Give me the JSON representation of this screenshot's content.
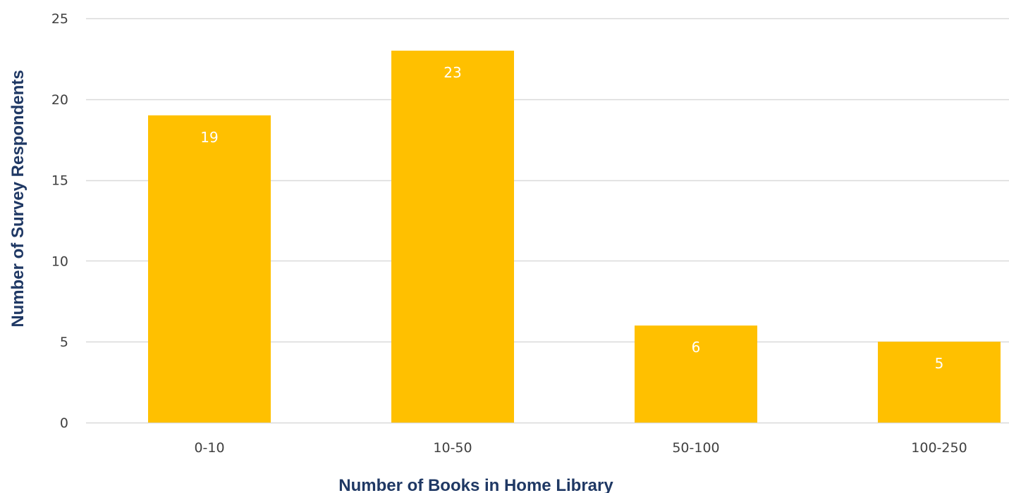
{
  "chart_data": {
    "type": "bar",
    "title": "",
    "categories": [
      "0-10",
      "10-50",
      "50-100",
      "100-250"
    ],
    "values": [
      19,
      23,
      6,
      5
    ],
    "data_labels": [
      "19",
      "23",
      "6",
      "5"
    ],
    "xlabel": "Number of Books in Home Library",
    "ylabel": "Number of Survey Respondents",
    "ylim": [
      0,
      25
    ],
    "yticks": [
      0,
      5,
      10,
      15,
      20,
      25
    ],
    "ytick_labels": [
      "0",
      "5",
      "10",
      "15",
      "20",
      "25"
    ],
    "grid": true,
    "legend": "none"
  },
  "colors": {
    "bar": "#ffc000",
    "grid": "#d9d9d9",
    "tick_text": "#404040",
    "axis_title": "#1f3864",
    "data_label": "#ffffff"
  }
}
